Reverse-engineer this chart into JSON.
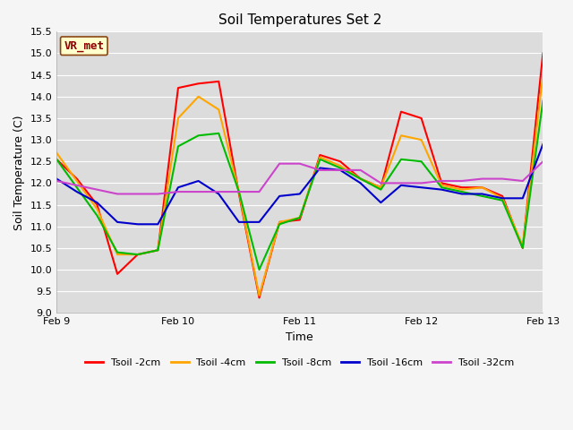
{
  "title": "Soil Temperatures Set 2",
  "xlabel": "Time",
  "ylabel": "Soil Temperature (C)",
  "ylim": [
    9.0,
    15.5
  ],
  "yticks": [
    9.0,
    9.5,
    10.0,
    10.5,
    11.0,
    11.5,
    12.0,
    12.5,
    13.0,
    13.5,
    14.0,
    14.5,
    15.0,
    15.5
  ],
  "background_color": "#dcdcdc",
  "plot_bg_color": "#dcdcdc",
  "fig_bg_color": "#f5f5f5",
  "grid_color": "#ffffff",
  "annotation_label": "VR_met",
  "annotation_bg": "#ffffcc",
  "annotation_border": "#8b4513",
  "annotation_text_color": "#8b0000",
  "series": {
    "Tsoil -2cm": {
      "color": "#ff0000",
      "x": [
        0,
        1,
        2,
        3,
        4,
        5,
        6,
        7,
        8,
        9,
        10,
        11,
        12,
        13,
        14,
        15,
        16,
        17,
        18,
        19,
        20,
        21,
        22,
        23,
        24
      ],
      "y": [
        12.55,
        12.1,
        11.5,
        9.9,
        10.35,
        10.45,
        14.2,
        14.3,
        14.35,
        11.75,
        9.35,
        11.1,
        11.15,
        12.65,
        12.5,
        12.1,
        11.9,
        13.65,
        13.5,
        12.0,
        11.9,
        11.9,
        11.7,
        10.5,
        15.0
      ]
    },
    "Tsoil -4cm": {
      "color": "#ffa500",
      "x": [
        0,
        1,
        2,
        3,
        4,
        5,
        6,
        7,
        8,
        9,
        10,
        11,
        12,
        13,
        14,
        15,
        16,
        17,
        18,
        19,
        20,
        21,
        22,
        23,
        24
      ],
      "y": [
        12.7,
        12.05,
        11.4,
        10.35,
        10.35,
        10.45,
        13.5,
        14.0,
        13.7,
        11.8,
        9.4,
        11.1,
        11.2,
        12.6,
        12.4,
        12.1,
        11.9,
        13.1,
        13.0,
        11.95,
        11.85,
        11.9,
        11.65,
        10.55,
        14.5
      ]
    },
    "Tsoil -8cm": {
      "color": "#00bb00",
      "x": [
        0,
        1,
        2,
        3,
        4,
        5,
        6,
        7,
        8,
        9,
        10,
        11,
        12,
        13,
        14,
        15,
        16,
        17,
        18,
        19,
        20,
        21,
        22,
        23,
        24
      ],
      "y": [
        12.55,
        11.9,
        11.25,
        10.4,
        10.35,
        10.45,
        12.85,
        13.1,
        13.15,
        11.8,
        10.0,
        11.05,
        11.2,
        12.55,
        12.35,
        12.1,
        11.85,
        12.55,
        12.5,
        11.9,
        11.8,
        11.7,
        11.6,
        10.5,
        13.9
      ]
    },
    "Tsoil -16cm": {
      "color": "#0000cc",
      "x": [
        0,
        1,
        2,
        3,
        4,
        5,
        6,
        7,
        8,
        9,
        10,
        11,
        12,
        13,
        14,
        15,
        16,
        17,
        18,
        19,
        20,
        21,
        22,
        23,
        24
      ],
      "y": [
        12.1,
        11.8,
        11.55,
        11.1,
        11.05,
        11.05,
        11.9,
        12.05,
        11.75,
        11.1,
        11.1,
        11.7,
        11.75,
        12.35,
        12.3,
        12.0,
        11.55,
        11.95,
        11.9,
        11.85,
        11.75,
        11.75,
        11.65,
        11.65,
        12.9
      ]
    },
    "Tsoil -32cm": {
      "color": "#cc44cc",
      "x": [
        0,
        1,
        2,
        3,
        4,
        5,
        6,
        7,
        8,
        9,
        10,
        11,
        12,
        13,
        14,
        15,
        16,
        17,
        18,
        19,
        20,
        21,
        22,
        23,
        24
      ],
      "y": [
        12.05,
        11.95,
        11.85,
        11.75,
        11.75,
        11.75,
        11.8,
        11.8,
        11.8,
        11.8,
        11.8,
        12.45,
        12.45,
        12.3,
        12.3,
        12.3,
        12.0,
        12.0,
        12.0,
        12.05,
        12.05,
        12.1,
        12.1,
        12.05,
        12.5
      ]
    }
  },
  "xtick_positions": [
    0,
    6,
    12,
    18,
    24
  ],
  "xtick_labels": [
    "Feb 9",
    "Feb 10",
    "Feb 11",
    "Feb 12",
    "Feb 13"
  ],
  "legend_order": [
    "Tsoil -2cm",
    "Tsoil -4cm",
    "Tsoil -8cm",
    "Tsoil -16cm",
    "Tsoil -32cm"
  ]
}
